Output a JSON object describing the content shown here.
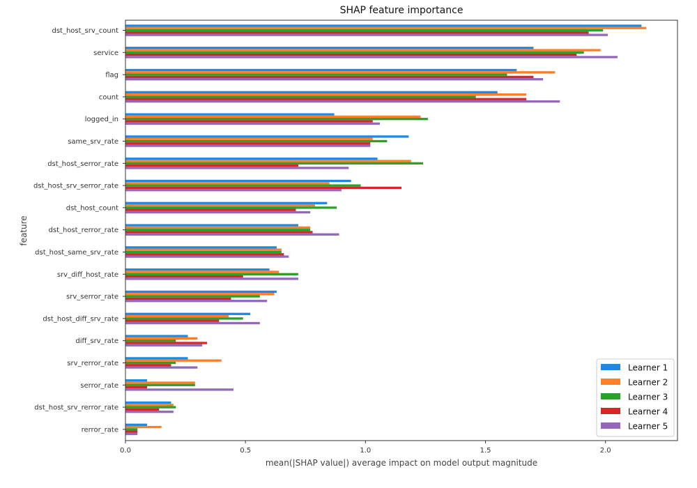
{
  "chart_data": {
    "type": "bar",
    "orientation": "horizontal",
    "title": "SHAP feature importance",
    "xlabel": "mean(|SHAP value|) average impact on model output magnitude",
    "ylabel": "feature",
    "xlim": [
      0,
      2.3
    ],
    "xticks": [
      "0.0",
      "0.5",
      "1.0",
      "1.5",
      "2.0"
    ],
    "xtick_values": [
      0,
      0.5,
      1.0,
      1.5,
      2.0
    ],
    "grid": false,
    "legend_position": "bottom-right",
    "categories": [
      "dst_host_srv_count",
      "service",
      "flag",
      "count",
      "logged_in",
      "same_srv_rate",
      "dst_host_serror_rate",
      "dst_host_srv_serror_rate",
      "dst_host_count",
      "dst_host_rerror_rate",
      "dst_host_same_srv_rate",
      "srv_diff_host_rate",
      "srv_serror_rate",
      "dst_host_diff_srv_rate",
      "diff_srv_rate",
      "srv_rerror_rate",
      "serror_rate",
      "dst_host_srv_rerror_rate",
      "rerror_rate"
    ],
    "series": [
      {
        "name": "Learner 1",
        "color": "#1f88e5",
        "values": [
          2.15,
          1.7,
          1.63,
          1.55,
          0.87,
          1.18,
          1.05,
          0.94,
          0.84,
          0.72,
          0.63,
          0.6,
          0.63,
          0.52,
          0.26,
          0.26,
          0.09,
          0.19,
          0.09
        ]
      },
      {
        "name": "Learner 2",
        "color": "#ff7f27",
        "values": [
          2.17,
          1.98,
          1.79,
          1.67,
          1.23,
          1.03,
          1.19,
          0.85,
          0.79,
          0.77,
          0.65,
          0.64,
          0.62,
          0.43,
          0.3,
          0.4,
          0.29,
          0.2,
          0.15
        ]
      },
      {
        "name": "Learner 3",
        "color": "#2ca02c",
        "values": [
          1.99,
          1.91,
          1.59,
          1.46,
          1.26,
          1.09,
          1.24,
          0.98,
          0.88,
          0.77,
          0.65,
          0.72,
          0.56,
          0.49,
          0.21,
          0.21,
          0.29,
          0.21,
          0.05
        ]
      },
      {
        "name": "Learner 4",
        "color": "#d62728",
        "values": [
          1.93,
          1.88,
          1.7,
          1.67,
          1.03,
          1.02,
          0.72,
          1.15,
          0.71,
          0.78,
          0.66,
          0.49,
          0.44,
          0.39,
          0.34,
          0.19,
          0.09,
          0.14,
          0.05
        ]
      },
      {
        "name": "Learner 5",
        "color": "#9467bd",
        "values": [
          2.01,
          2.05,
          1.74,
          1.81,
          1.06,
          1.02,
          0.93,
          0.9,
          0.77,
          0.89,
          0.68,
          0.72,
          0.59,
          0.56,
          0.32,
          0.3,
          0.45,
          0.2,
          0.05
        ]
      }
    ]
  }
}
